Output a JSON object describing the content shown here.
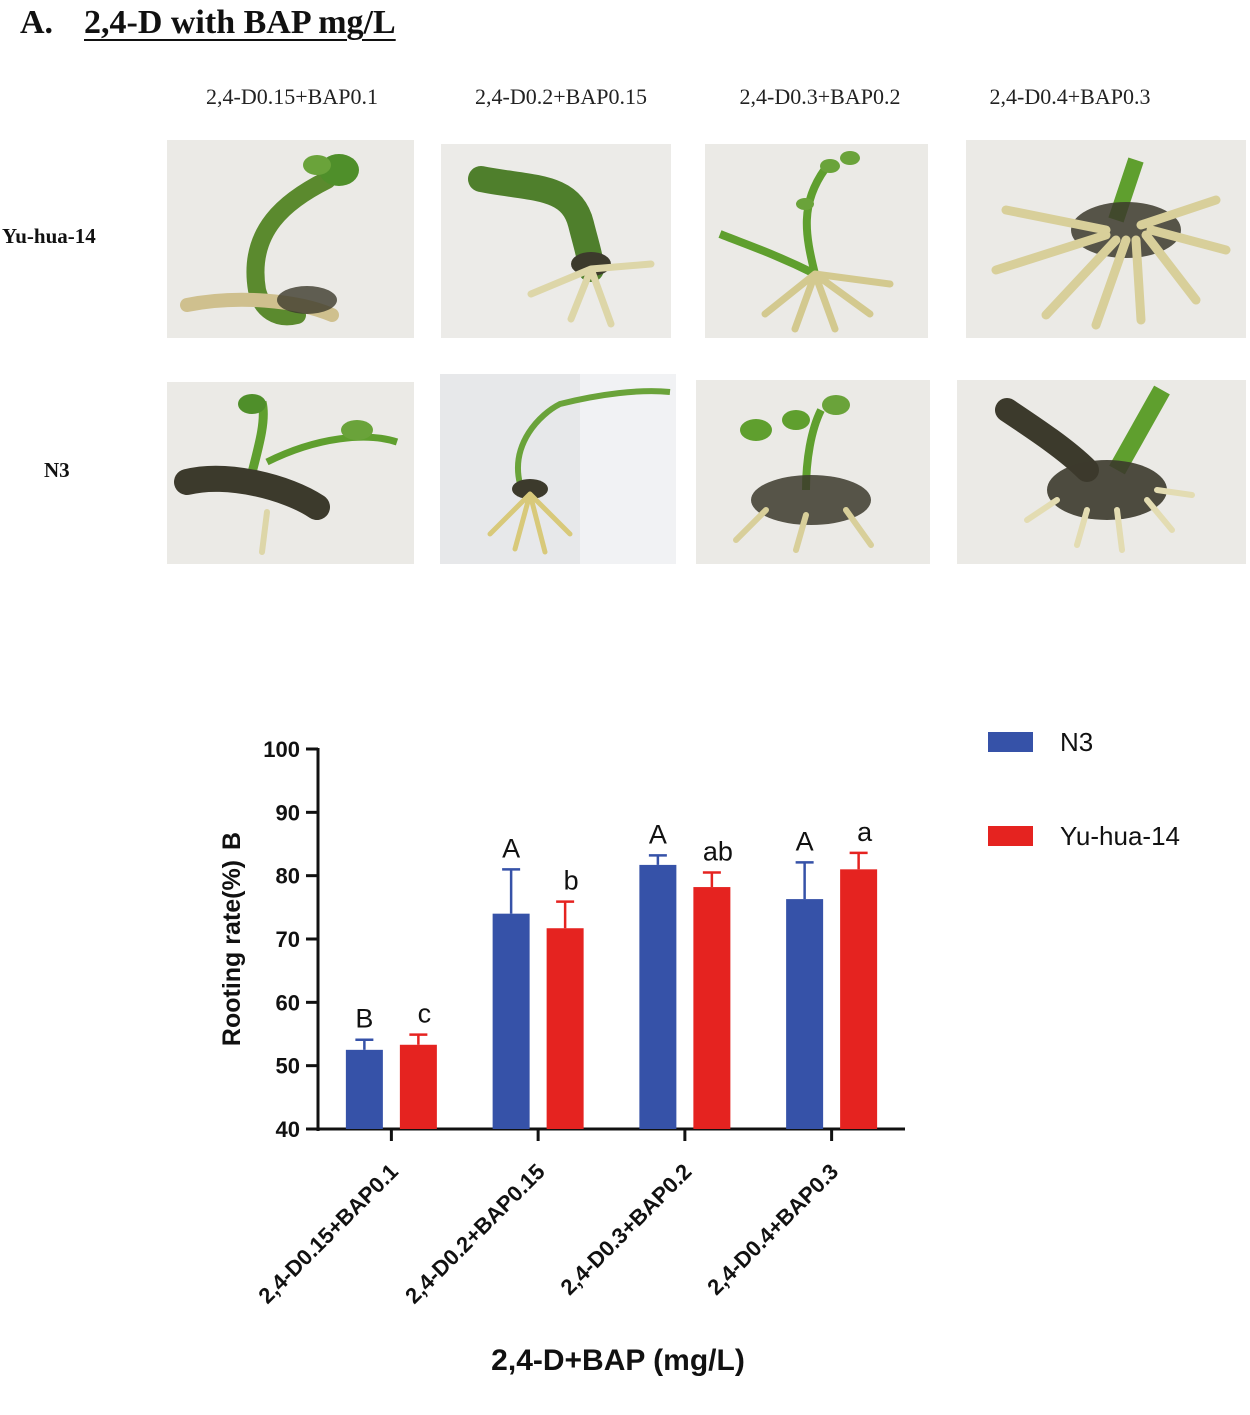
{
  "panel_a": {
    "letter": "A.",
    "title": "2,4-D with BAP mg/L",
    "column_labels": [
      "2,4-D0.15+BAP0.1",
      "2,4-D0.2+BAP0.15",
      "2,4-D0.3+BAP0.2",
      "2,4-D0.4+BAP0.3"
    ],
    "row_labels": [
      "Yu-hua-14",
      "N3"
    ]
  },
  "colors": {
    "n3": "#3652a8",
    "yuhua": "#e52320",
    "stem": "#5b8a2e",
    "leaf": "#5f9f2e",
    "root": "#d8cf9a",
    "callus": "#3c3a2c",
    "photo_bg": "#ebeae6"
  },
  "chart_data": {
    "type": "bar",
    "panel_letter": "B",
    "title": "",
    "xlabel": "2,4-D+BAP (mg/L)",
    "ylabel": "Rooting rate(%)",
    "ylim": [
      40,
      100
    ],
    "yticks": [
      40,
      50,
      60,
      70,
      80,
      90,
      100
    ],
    "categories": [
      "2,4-D0.15+BAP0.1",
      "2,4-D0.2+BAP0.15",
      "2,4-D0.3+BAP0.2",
      "2,4-D0.4+BAP0.3"
    ],
    "legend_position": "top-right",
    "series": [
      {
        "name": "N3",
        "color": "#3652a8",
        "values": [
          52.5,
          74.0,
          81.7,
          76.3
        ],
        "errors": [
          1.6,
          7.0,
          1.5,
          5.8
        ],
        "letters": [
          "B",
          "A",
          "A",
          "A"
        ]
      },
      {
        "name": "Yu-hua-14",
        "color": "#e52320",
        "values": [
          53.3,
          71.7,
          78.2,
          81.0
        ],
        "errors": [
          1.6,
          4.2,
          2.3,
          2.6
        ],
        "letters": [
          "c",
          "b",
          "ab",
          "a"
        ]
      }
    ]
  }
}
